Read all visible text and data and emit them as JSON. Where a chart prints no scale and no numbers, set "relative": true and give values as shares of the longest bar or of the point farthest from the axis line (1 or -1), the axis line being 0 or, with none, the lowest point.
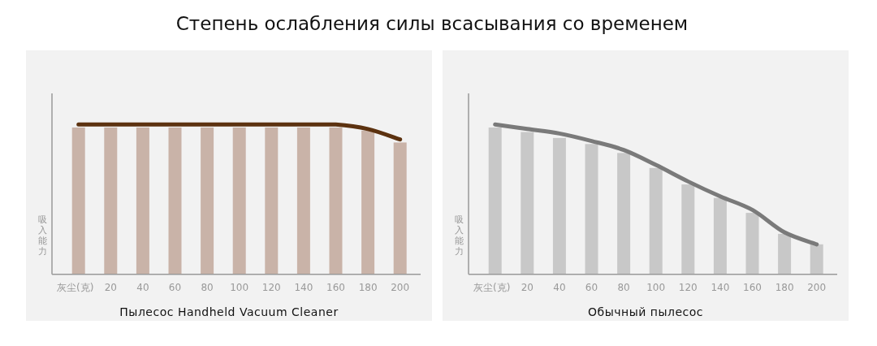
{
  "chart_data": [
    {
      "type": "bar",
      "title": "Степень ослабления силы всасывания со временем",
      "ylabel": "吸入能力",
      "relative": true,
      "categories": [
        "灰尘(克)",
        "20",
        "40",
        "60",
        "80",
        "100",
        "120",
        "140",
        "160",
        "180",
        "200"
      ],
      "series": [
        {
          "color": "#c9b3a8",
          "values": [
            0.98,
            0.98,
            0.98,
            0.98,
            0.98,
            0.98,
            0.98,
            0.98,
            0.98,
            0.96,
            0.88
          ]
        },
        {
          "type": "line",
          "color": "#5c3210",
          "values": [
            1,
            1,
            1,
            1,
            1,
            1,
            1,
            1,
            1,
            0.97,
            0.9
          ]
        }
      ],
      "annotations": [
        "Пылесос Handheld Vacuum Cleaner"
      ]
    },
    {
      "type": "bar",
      "ylabel": "吸入能力",
      "relative": true,
      "categories": [
        "灰尘(克)",
        "20",
        "40",
        "60",
        "80",
        "100",
        "120",
        "140",
        "160",
        "180",
        "200"
      ],
      "series": [
        {
          "color": "#c8c8c8",
          "values": [
            0.98,
            0.95,
            0.91,
            0.87,
            0.81,
            0.71,
            0.6,
            0.51,
            0.41,
            0.27,
            0.2
          ]
        },
        {
          "type": "line",
          "color": "#7a7a7a",
          "values": [
            1,
            0.97,
            0.94,
            0.89,
            0.83,
            0.73,
            0.62,
            0.52,
            0.43,
            0.28,
            0.2
          ]
        }
      ],
      "annotations": [
        "Обычный пылесос"
      ]
    }
  ]
}
